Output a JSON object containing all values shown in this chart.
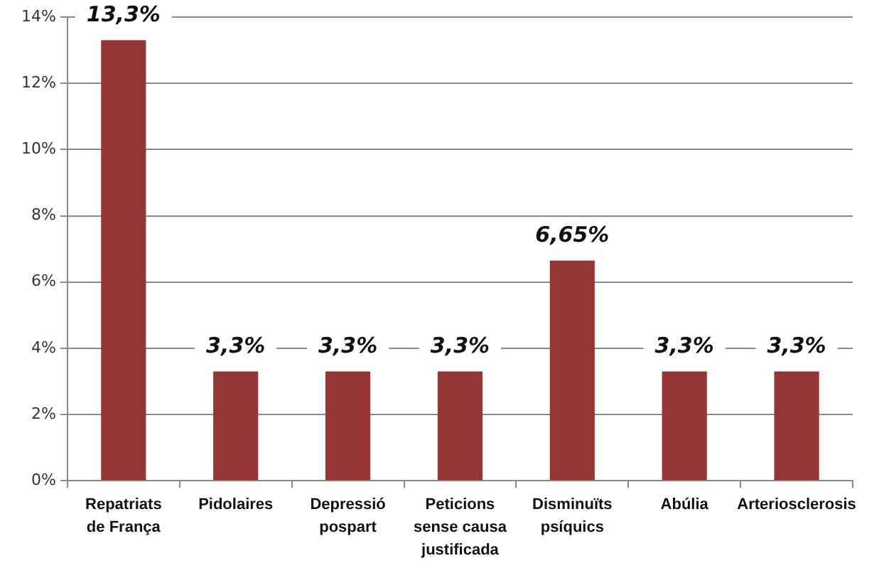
{
  "chart_data": {
    "type": "bar",
    "categories": [
      "Repatriats de França",
      "Pidolaires",
      "Depressió pospart",
      "Peticions sense causa justificada",
      "Disminuïts psíquics",
      "Abúlia",
      "Arteriosclerosis"
    ],
    "values": [
      13.3,
      3.3,
      3.3,
      3.3,
      6.65,
      3.3,
      3.3
    ],
    "value_labels": [
      "13,3%",
      "3,3%",
      "3,3%",
      "3,3%",
      "6,65%",
      "3,3%",
      "3,3%"
    ],
    "color": "#943634",
    "ylim": [
      0,
      14
    ],
    "yticks": [
      {
        "value": 0,
        "label": "0%"
      },
      {
        "value": 2,
        "label": "2%"
      },
      {
        "value": 4,
        "label": "4%"
      },
      {
        "value": 6,
        "label": "6%"
      },
      {
        "value": 8,
        "label": "8%"
      },
      {
        "value": 10,
        "label": "10%"
      },
      {
        "value": 12,
        "label": "12%"
      },
      {
        "value": 14,
        "label": "14%"
      }
    ],
    "grid": "y"
  }
}
